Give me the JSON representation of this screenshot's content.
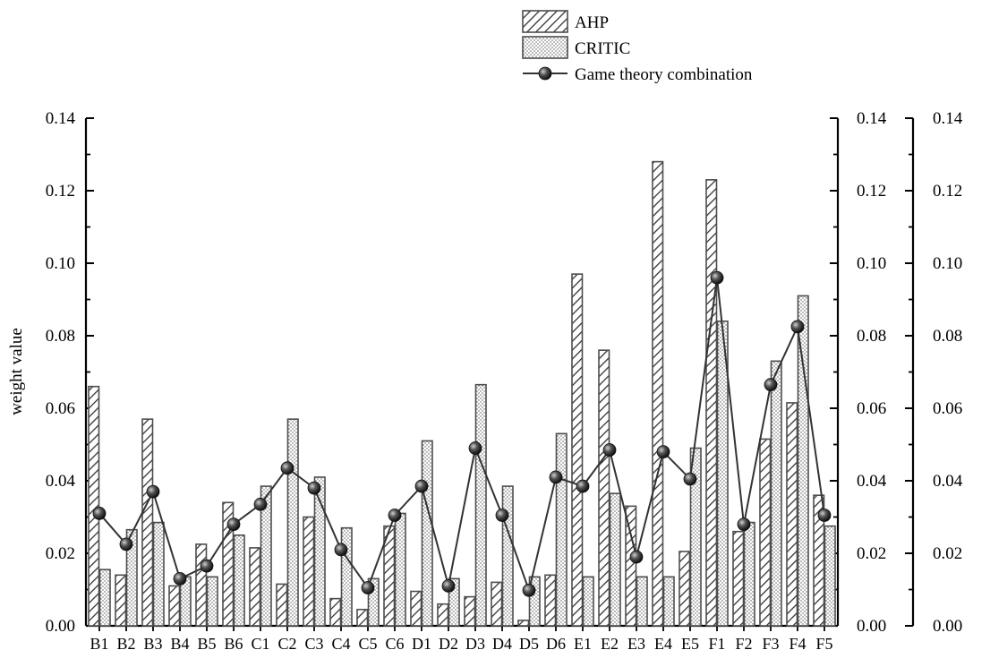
{
  "chart_data": {
    "type": "bar",
    "title": "",
    "xlabel": "",
    "ylabel": "weight value",
    "ylim": [
      0,
      0.14
    ],
    "yticks": [
      0.0,
      0.02,
      0.04,
      0.06,
      0.08,
      0.1,
      0.12,
      0.14
    ],
    "ytick_labels": [
      "0.00",
      "0.02",
      "0.04",
      "0.06",
      "0.08",
      "0.10",
      "0.12",
      "0.14"
    ],
    "grid": false,
    "legend_position": "top-right",
    "categories": [
      "B1",
      "B2",
      "B3",
      "B4",
      "B5",
      "B6",
      "C1",
      "C2",
      "C3",
      "C4",
      "C5",
      "C6",
      "D1",
      "D2",
      "D3",
      "D4",
      "D5",
      "D6",
      "E1",
      "E2",
      "E3",
      "E4",
      "E5",
      "F1",
      "F2",
      "F3",
      "F4",
      "F5"
    ],
    "series": [
      {
        "name": "AHP",
        "type": "bar",
        "pattern": "hatch",
        "values": [
          0.066,
          0.014,
          0.057,
          0.011,
          0.0225,
          0.034,
          0.0215,
          0.0115,
          0.03,
          0.0075,
          0.0045,
          0.0275,
          0.0095,
          0.006,
          0.008,
          0.012,
          0.0015,
          0.014,
          0.097,
          0.076,
          0.033,
          0.128,
          0.0205,
          0.123,
          0.026,
          0.0515,
          0.0615,
          0.036
        ]
      },
      {
        "name": "CRITIC",
        "type": "bar",
        "pattern": "dots",
        "values": [
          0.0155,
          0.0265,
          0.0285,
          0.0135,
          0.0135,
          0.025,
          0.0385,
          0.057,
          0.041,
          0.027,
          0.013,
          0.031,
          0.051,
          0.013,
          0.0665,
          0.0385,
          0.0135,
          0.053,
          0.0135,
          0.0365,
          0.0135,
          0.0135,
          0.049,
          0.084,
          0.0285,
          0.073,
          0.091,
          0.0275
        ]
      },
      {
        "name": "Game theory combination",
        "type": "line",
        "values": [
          0.031,
          0.0225,
          0.037,
          0.013,
          0.0165,
          0.028,
          0.0335,
          0.0435,
          0.038,
          0.021,
          0.0105,
          0.0305,
          0.0385,
          0.011,
          0.049,
          0.0305,
          0.0098,
          0.041,
          0.0385,
          0.0485,
          0.019,
          0.048,
          0.0405,
          0.096,
          0.028,
          0.0665,
          0.0825,
          0.0305
        ]
      }
    ]
  },
  "colors": {
    "bar_fill": "#ffffff",
    "bar_stroke": "#4d4d4d",
    "line": "#333333",
    "marker": "#444444",
    "axis": "#000000"
  }
}
